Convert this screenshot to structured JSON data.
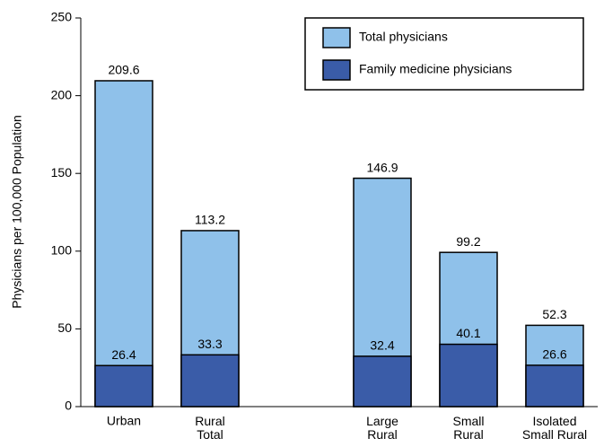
{
  "chart_data": {
    "type": "bar",
    "overlap": true,
    "y_label": "Physicians per 100,000 Population",
    "categories": [
      "Urban",
      "Rural\nTotal",
      null,
      "Large\nRural",
      "Small\nRural",
      "Isolated\nSmall Rural"
    ],
    "series": [
      {
        "name": "Total physicians",
        "color": "#8fc1ea",
        "values": [
          209.6,
          113.2,
          null,
          146.9,
          99.2,
          52.3
        ]
      },
      {
        "name": "Family medicine physicians",
        "color": "#3a5ca8",
        "values": [
          26.4,
          33.3,
          null,
          32.4,
          40.1,
          26.6
        ]
      }
    ],
    "ylim": [
      0,
      250
    ],
    "yticks": [
      0,
      50,
      100,
      150,
      200,
      250
    ],
    "legend": "top-right"
  }
}
